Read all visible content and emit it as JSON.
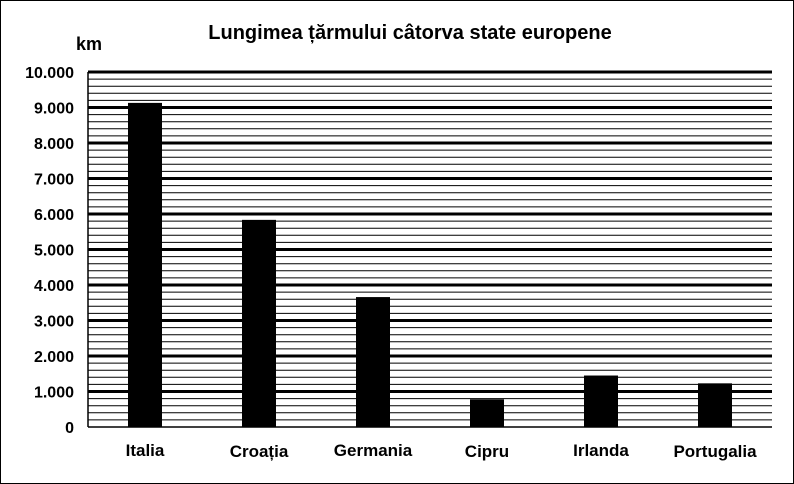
{
  "chart_data": {
    "type": "bar",
    "title": "Lungimea țărmului câtorva state europene",
    "ylabel": "km",
    "xlabel": "",
    "categories": [
      "Italia",
      "Croația",
      "Germania",
      "Cipru",
      "Irlanda",
      "Portugalia"
    ],
    "values": [
      9130,
      5835,
      3660,
      780,
      1450,
      1230
    ],
    "ylim": [
      0,
      10000
    ],
    "yticks": [
      0,
      1000,
      2000,
      3000,
      4000,
      5000,
      6000,
      7000,
      8000,
      9000,
      10000
    ],
    "ytick_labels": [
      "0",
      "1.000",
      "2.000",
      "3.000",
      "4.000",
      "5.000",
      "6.000",
      "7.000",
      "8.000",
      "9.000",
      "10.000"
    ],
    "minor_grid_step": 200,
    "grid": true,
    "legend": "none",
    "bar_color": "#000000",
    "grid_color": "#000000"
  }
}
